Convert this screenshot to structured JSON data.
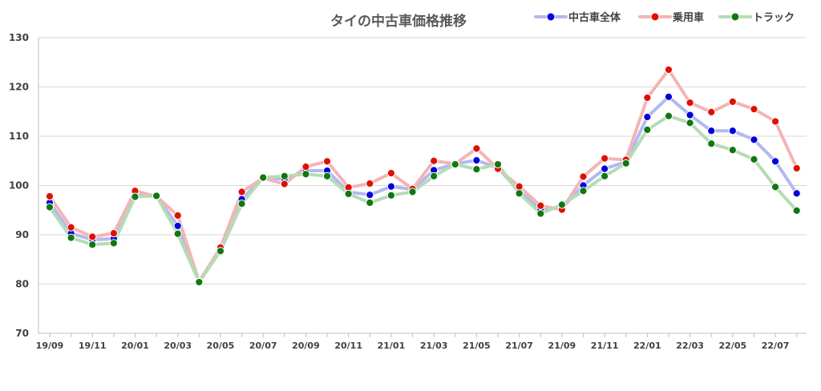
{
  "chart_data": {
    "type": "line",
    "title": "タイの中古車価格推移",
    "xlabel": "",
    "ylabel": "",
    "ylim": [
      70,
      130
    ],
    "yticks": [
      70,
      80,
      90,
      100,
      110,
      120,
      130
    ],
    "x": [
      "19/09",
      "19/10",
      "19/11",
      "19/12",
      "20/01",
      "20/02",
      "20/03",
      "20/04",
      "20/05",
      "20/06",
      "20/07",
      "20/08",
      "20/09",
      "20/10",
      "20/11",
      "20/12",
      "21/01",
      "21/02",
      "21/03",
      "21/04",
      "21/05",
      "21/06",
      "21/07",
      "21/08",
      "21/09",
      "21/10",
      "21/11",
      "21/12",
      "22/01",
      "22/02",
      "22/03",
      "22/04",
      "22/05",
      "22/06",
      "22/07",
      "22/08"
    ],
    "xtick_labels": [
      "19/09",
      "19/11",
      "20/01",
      "20/03",
      "20/05",
      "20/07",
      "20/09",
      "20/11",
      "21/01",
      "21/03",
      "21/05",
      "21/07",
      "21/09",
      "21/11",
      "22/01",
      "22/03",
      "22/05",
      "22/07"
    ],
    "grid": true,
    "legend_position": "top-right",
    "series": [
      {
        "name": "中古車全体",
        "line_color": "#b3b8f0",
        "marker_color": "#0000dd",
        "values": [
          96.5,
          90.3,
          89,
          89.2,
          98.4,
          97.9,
          91.8,
          80.4,
          87,
          97.2,
          101.6,
          101.3,
          103,
          103,
          98.7,
          98.1,
          99.8,
          99.2,
          103.1,
          104.4,
          105.1,
          103.6,
          98.8,
          95.2,
          95.4,
          100,
          103.4,
          104.8,
          113.9,
          118,
          114.3,
          111.1,
          111.1,
          109.3,
          104.9,
          98.4
        ]
      },
      {
        "name": "乗用車",
        "line_color": "#f4b4b4",
        "marker_color": "#dd1100",
        "values": [
          97.8,
          91.5,
          89.6,
          90.3,
          98.9,
          97.8,
          93.9,
          80.5,
          87.4,
          98.7,
          101.5,
          100.3,
          103.8,
          104.9,
          99.6,
          100.4,
          102.5,
          99.3,
          105,
          104.4,
          107.5,
          103.4,
          99.8,
          95.9,
          95.1,
          101.8,
          105.5,
          105.2,
          117.8,
          123.5,
          116.8,
          114.9,
          117,
          115.5,
          113,
          103.5
        ]
      },
      {
        "name": "トラック",
        "line_color": "#b4dcb4",
        "marker_color": "#117711",
        "values": [
          95.6,
          89.4,
          88,
          88.3,
          97.7,
          97.9,
          90.2,
          80.4,
          86.7,
          96.3,
          101.6,
          101.9,
          102.3,
          101.9,
          98.3,
          96.5,
          98,
          98.7,
          101.9,
          104.3,
          103.3,
          104.3,
          98.4,
          94.3,
          96.1,
          98.9,
          101.9,
          104.5,
          111.3,
          114.1,
          112.7,
          108.5,
          107.2,
          105.3,
          99.7,
          94.9
        ]
      }
    ]
  }
}
